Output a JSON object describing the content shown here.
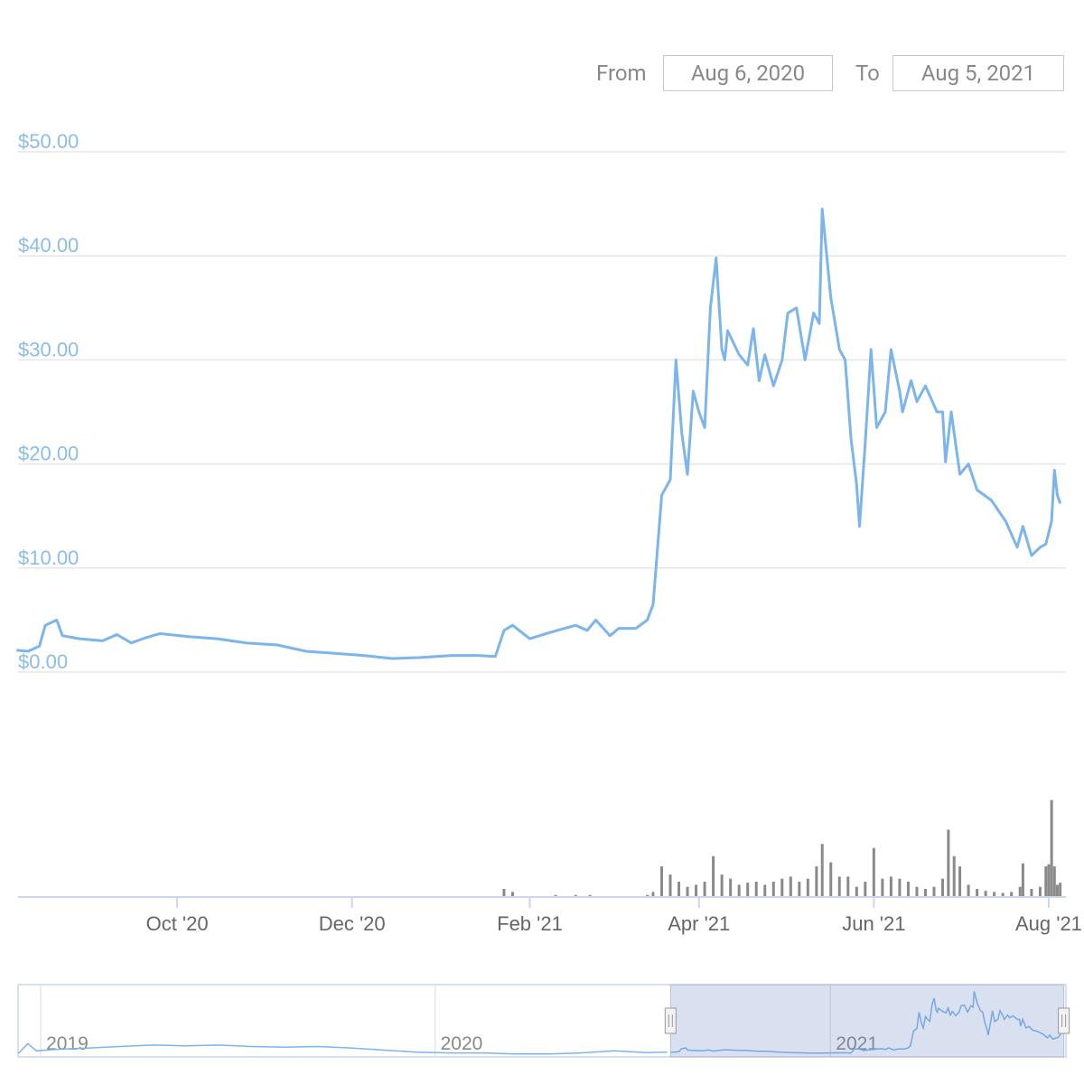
{
  "chart_data": {
    "type": "line",
    "date_range": {
      "from_label": "From",
      "from": "Aug 6, 2020",
      "to_label": "To",
      "to": "Aug 5, 2021"
    },
    "x": [
      "2020-08-06",
      "2020-08-10",
      "2020-08-14",
      "2020-08-16",
      "2020-08-20",
      "2020-08-22",
      "2020-08-28",
      "2020-09-05",
      "2020-09-10",
      "2020-09-15",
      "2020-09-20",
      "2020-09-25",
      "2020-10-05",
      "2020-10-15",
      "2020-10-25",
      "2020-11-05",
      "2020-11-15",
      "2020-11-25",
      "2020-12-05",
      "2020-12-15",
      "2020-12-25",
      "2021-01-05",
      "2021-01-14",
      "2021-01-20",
      "2021-01-23",
      "2021-01-26",
      "2021-02-01",
      "2021-02-08",
      "2021-02-17",
      "2021-02-21",
      "2021-02-24",
      "2021-03-01",
      "2021-03-04",
      "2021-03-10",
      "2021-03-14",
      "2021-03-16",
      "2021-03-19",
      "2021-03-22",
      "2021-03-24",
      "2021-03-26",
      "2021-03-28",
      "2021-03-30",
      "2021-04-01",
      "2021-04-03",
      "2021-04-05",
      "2021-04-07",
      "2021-04-09",
      "2021-04-10",
      "2021-04-11",
      "2021-04-15",
      "2021-04-18",
      "2021-04-20",
      "2021-04-22",
      "2021-04-24",
      "2021-04-27",
      "2021-04-30",
      "2021-05-02",
      "2021-05-05",
      "2021-05-08",
      "2021-05-11",
      "2021-05-13",
      "2021-05-14",
      "2021-05-17",
      "2021-05-20",
      "2021-05-22",
      "2021-05-24",
      "2021-05-26",
      "2021-05-27",
      "2021-05-29",
      "2021-05-31",
      "2021-06-02",
      "2021-06-05",
      "2021-06-07",
      "2021-06-10",
      "2021-06-11",
      "2021-06-14",
      "2021-06-16",
      "2021-06-19",
      "2021-06-23",
      "2021-06-25",
      "2021-06-26",
      "2021-06-28",
      "2021-07-01",
      "2021-07-04",
      "2021-07-07",
      "2021-07-12",
      "2021-07-17",
      "2021-07-21",
      "2021-07-23",
      "2021-07-26",
      "2021-07-29",
      "2021-07-31",
      "2021-08-02",
      "2021-08-03",
      "2021-08-04",
      "2021-08-05"
    ],
    "series": [
      {
        "color": "#7cb5ec",
        "values": [
          2.1,
          2.0,
          2.5,
          4.5,
          5.0,
          3.5,
          3.2,
          3.0,
          3.6,
          2.8,
          3.3,
          3.7,
          3.4,
          3.2,
          2.8,
          2.6,
          2.0,
          1.8,
          1.6,
          1.3,
          1.4,
          1.6,
          1.6,
          1.5,
          4.0,
          4.5,
          3.2,
          3.8,
          4.5,
          4.0,
          5.0,
          3.5,
          4.2,
          4.2,
          5.0,
          6.5,
          17,
          18.5,
          30,
          23,
          19,
          27,
          25,
          23.5,
          35,
          39.8,
          31,
          30,
          32.8,
          30.5,
          29.5,
          33,
          28,
          30.5,
          27.5,
          30,
          34.5,
          35,
          30,
          34.5,
          33.5,
          44.5,
          36,
          31,
          30,
          22.5,
          18,
          14,
          22,
          31,
          23.5,
          25,
          31,
          27,
          25,
          28,
          26,
          27.5,
          25,
          25,
          20.2,
          25,
          19,
          20,
          17.5,
          16.5,
          14.5,
          12,
          14,
          11.2,
          12,
          12.3,
          14.5,
          19.4,
          17,
          16.2
        ]
      }
    ],
    "xlim": [
      "2020-08-04",
      "2021-08-07"
    ],
    "xticks": [
      {
        "value": "2020-10-01",
        "label": "Oct '20"
      },
      {
        "value": "2020-12-01",
        "label": "Dec '20"
      },
      {
        "value": "2021-02-01",
        "label": "Feb '21"
      },
      {
        "value": "2021-04-01",
        "label": "Apr '21"
      },
      {
        "value": "2021-06-01",
        "label": "Jun '21"
      },
      {
        "value": "2021-08-01",
        "label": "Aug '21"
      }
    ],
    "ylim": [
      0,
      50
    ],
    "yticks": [
      {
        "value": 0,
        "label": "$0.00"
      },
      {
        "value": 10,
        "label": "$10.00"
      },
      {
        "value": 20,
        "label": "$20.00"
      },
      {
        "value": 30,
        "label": "$30.00"
      },
      {
        "value": 40,
        "label": "$40.00"
      },
      {
        "value": 50,
        "label": "$50.00"
      }
    ],
    "grid": true,
    "volume": {
      "color": "#8a8a8a",
      "ylim": [
        0,
        100
      ],
      "x": [
        "2021-01-23",
        "2021-01-26",
        "2021-02-10",
        "2021-02-17",
        "2021-02-22",
        "2021-03-14",
        "2021-03-16",
        "2021-03-19",
        "2021-03-22",
        "2021-03-25",
        "2021-03-28",
        "2021-03-31",
        "2021-04-03",
        "2021-04-06",
        "2021-04-09",
        "2021-04-12",
        "2021-04-15",
        "2021-04-18",
        "2021-04-21",
        "2021-04-24",
        "2021-04-27",
        "2021-04-30",
        "2021-05-03",
        "2021-05-06",
        "2021-05-09",
        "2021-05-12",
        "2021-05-14",
        "2021-05-17",
        "2021-05-20",
        "2021-05-23",
        "2021-05-26",
        "2021-05-29",
        "2021-06-01",
        "2021-06-04",
        "2021-06-07",
        "2021-06-10",
        "2021-06-13",
        "2021-06-16",
        "2021-06-19",
        "2021-06-22",
        "2021-06-25",
        "2021-06-27",
        "2021-06-29",
        "2021-07-01",
        "2021-07-04",
        "2021-07-07",
        "2021-07-10",
        "2021-07-13",
        "2021-07-16",
        "2021-07-19",
        "2021-07-22",
        "2021-07-23",
        "2021-07-26",
        "2021-07-29",
        "2021-07-31",
        "2021-08-01",
        "2021-08-02",
        "2021-08-03",
        "2021-08-04",
        "2021-08-05"
      ],
      "values": [
        8,
        5,
        2,
        2,
        2,
        2,
        5,
        30,
        22,
        15,
        10,
        12,
        15,
        40,
        22,
        18,
        12,
        14,
        15,
        12,
        15,
        18,
        20,
        15,
        18,
        30,
        52,
        34,
        20,
        20,
        10,
        15,
        48,
        18,
        20,
        18,
        15,
        10,
        8,
        10,
        18,
        66,
        40,
        30,
        12,
        8,
        6,
        5,
        4,
        5,
        10,
        33,
        8,
        10,
        30,
        32,
        95,
        30,
        12,
        14
      ]
    },
    "navigator": {
      "xlim": [
        "2018-12-11",
        "2021-08-07"
      ],
      "ylim": [
        0,
        48
      ],
      "ticks": [
        {
          "value": "2019-01-01",
          "label": "2019"
        },
        {
          "value": "2020-01-01",
          "label": "2020"
        },
        {
          "value": "2021-01-01",
          "label": "2021"
        }
      ],
      "x": [
        "2018-12-11",
        "2018-12-20",
        "2018-12-28",
        "2019-01-15",
        "2019-02-15",
        "2019-03-15",
        "2019-04-15",
        "2019-05-15",
        "2019-06-15",
        "2019-07-15",
        "2019-08-15",
        "2019-09-15",
        "2019-10-15",
        "2019-11-15",
        "2019-12-15",
        "2020-01-15",
        "2020-02-15",
        "2020-03-15",
        "2020-04-15",
        "2020-05-15",
        "2020-06-15",
        "2020-07-15",
        "2020-08-03"
      ],
      "values": [
        1,
        8,
        3,
        4,
        5,
        6,
        7,
        6.5,
        7,
        6,
        5.5,
        6,
        5,
        3.5,
        2,
        1.5,
        1.5,
        0.8,
        0.8,
        1.5,
        3,
        1.8,
        2
      ]
    }
  }
}
